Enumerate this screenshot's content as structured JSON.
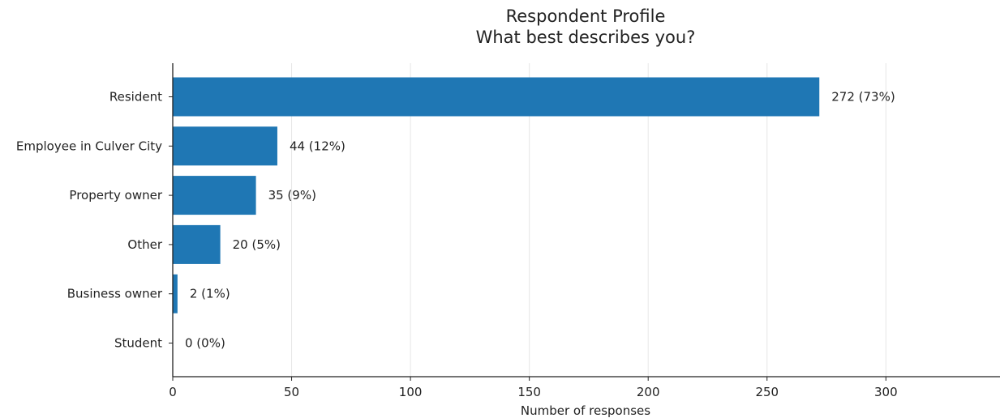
{
  "chart_data": {
    "type": "bar",
    "orientation": "horizontal",
    "title": "Respondent Profile",
    "subtitle": "What best describes you?",
    "xlabel": "Number of responses",
    "ylabel": "",
    "categories": [
      "Resident",
      "Employee in Culver City",
      "Property owner",
      "Other",
      "Business owner",
      "Student"
    ],
    "values": [
      272,
      44,
      35,
      20,
      2,
      0
    ],
    "data_labels": [
      "272 (73%)",
      "44 (12%)",
      "35 (9%)",
      "20 (5%)",
      "2 (1%)",
      "0 (0%)"
    ],
    "xlim": [
      0,
      348
    ],
    "xticks": [
      0,
      50,
      100,
      150,
      200,
      250,
      300
    ],
    "grid": "vertical",
    "bar_color": "#1f77b4",
    "legend": "none"
  }
}
